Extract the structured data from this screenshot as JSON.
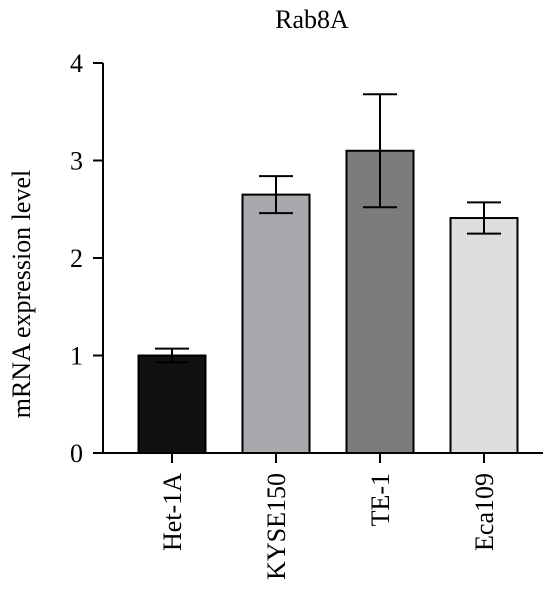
{
  "chart_data": {
    "type": "bar",
    "title": "Rab8A",
    "ylabel": "mRNA expression level",
    "xlabel": "",
    "categories": [
      "Het-1A",
      "KYSE150",
      "TE-1",
      "Eca109"
    ],
    "values": [
      1.0,
      2.65,
      3.1,
      2.41
    ],
    "errors": [
      0.07,
      0.19,
      0.58,
      0.16
    ],
    "colors": [
      "#111111",
      "#a9a8ad",
      "#7d7b7b",
      "#dddcdf"
    ],
    "ylim": [
      0,
      4
    ],
    "yticks": [
      "0",
      "1",
      "2",
      "3",
      "4"
    ],
    "grid": false,
    "legend": "none"
  }
}
